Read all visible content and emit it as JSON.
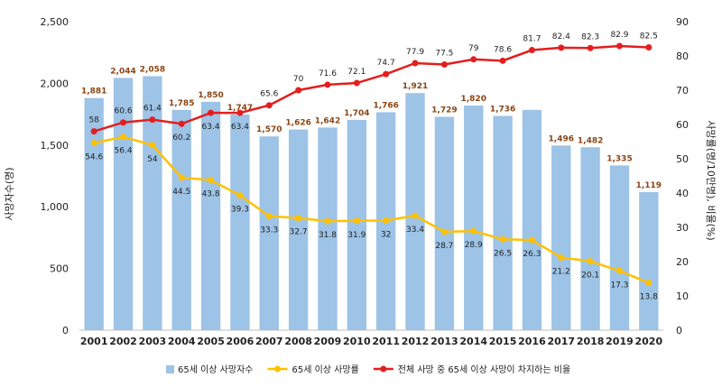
{
  "chart_data": {
    "type": "bar",
    "categories": [
      "2001",
      "2002",
      "2003",
      "2004",
      "2005",
      "2006",
      "2007",
      "2008",
      "2009",
      "2010",
      "2011",
      "2012",
      "2013",
      "2014",
      "2015",
      "2016",
      "2017",
      "2018",
      "2019",
      "2020"
    ],
    "series": [
      {
        "name": "65세 이상 사망자수",
        "type": "bar",
        "axis": "left",
        "color": "#9dc3e6",
        "values": [
          1881,
          2044,
          2058,
          1785,
          1850,
          1747,
          1570,
          1626,
          1642,
          1704,
          1766,
          1921,
          1729,
          1820,
          1736,
          1785,
          1496,
          1482,
          1335,
          1119
        ],
        "labels": [
          "1,881",
          "2,044",
          "2,058",
          "1,785",
          "1,850",
          "1,747",
          "1,570",
          "1,626",
          "1,642",
          "1,704",
          "1,766",
          "1,921",
          "1,729",
          "1,820",
          "1,736",
          "",
          "1,496",
          "1,482",
          "1,335",
          "1,119"
        ]
      },
      {
        "name": "65세 이상 사망률",
        "type": "line",
        "axis": "right",
        "color": "#ffc000",
        "values": [
          54.6,
          56.4,
          54,
          44.5,
          43.8,
          39.3,
          33.3,
          32.7,
          31.8,
          31.9,
          32,
          33.4,
          28.7,
          28.9,
          26.5,
          26.3,
          21.2,
          20.1,
          17.3,
          13.8
        ]
      },
      {
        "name": "전체 사망 중 65세 이상 사망이 차지하는 비율",
        "type": "line",
        "axis": "right",
        "color": "#e41e1e",
        "values": [
          58,
          60.6,
          61.4,
          60.2,
          63.4,
          63.4,
          65.6,
          70,
          71.6,
          72.1,
          74.7,
          77.9,
          77.5,
          79,
          78.6,
          81.7,
          82.4,
          82.3,
          82.9,
          82.5
        ]
      }
    ],
    "ylabel_left": "사망자수(명)",
    "ylabel_right": "사망률(명/10만명), 비율(%)",
    "ylim_left": [
      0,
      2500
    ],
    "ylim_right": [
      0,
      90
    ],
    "yticks_left": [
      "0",
      "500",
      "1,000",
      "1,500",
      "2,000",
      "2,500"
    ],
    "yticks_right": [
      "0",
      "10",
      "20",
      "30",
      "40",
      "50",
      "60",
      "70",
      "80",
      "90"
    ],
    "grid": false,
    "legend_position": "bottom"
  }
}
